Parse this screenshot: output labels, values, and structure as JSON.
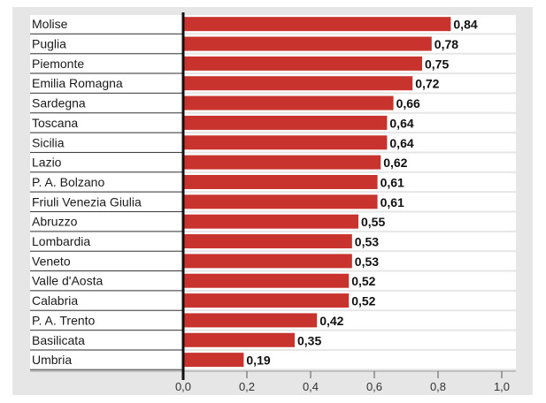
{
  "chart_data": {
    "type": "bar",
    "orientation": "horizontal",
    "title": "",
    "xlabel": "",
    "ylabel": "",
    "categories": [
      "Molise",
      "Puglia",
      "Piemonte",
      "Emilia Romagna",
      "Sardegna",
      "Toscana",
      "Sicilia",
      "Lazio",
      "P. A. Bolzano",
      "Friuli Venezia Giulia",
      "Abruzzo",
      "Lombardia",
      "Veneto",
      "Valle d'Aosta",
      "Calabria",
      "P. A. Trento",
      "Basilicata",
      "Umbria"
    ],
    "values": [
      0.84,
      0.78,
      0.75,
      0.72,
      0.66,
      0.64,
      0.64,
      0.62,
      0.61,
      0.61,
      0.55,
      0.53,
      0.53,
      0.52,
      0.52,
      0.42,
      0.35,
      0.19
    ],
    "value_labels": [
      "0,84",
      "0,78",
      "0,75",
      "0,72",
      "0,66",
      "0,64",
      "0,64",
      "0,62",
      "0,61",
      "0,61",
      "0,55",
      "0,53",
      "0,53",
      "0,52",
      "0,52",
      "0,42",
      "0,35",
      "0,19"
    ],
    "xlim": [
      0,
      1.0
    ],
    "xticks": [
      0,
      0.2,
      0.4,
      0.6,
      0.8,
      1.0
    ],
    "xtick_labels": [
      "0,0",
      "0,2",
      "0,4",
      "0,6",
      "0,8",
      "1,0"
    ],
    "legend": "none",
    "grid": false,
    "colors": {
      "bar": "#c8332d",
      "panel": "#e6e6e6",
      "row_bg": "#ffffff",
      "axis": "#111111",
      "divider": "#444444"
    }
  }
}
